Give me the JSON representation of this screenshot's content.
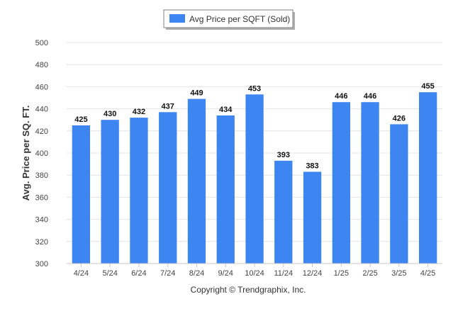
{
  "chart_data": {
    "type": "bar",
    "categories": [
      "4/24",
      "5/24",
      "6/24",
      "7/24",
      "8/24",
      "9/24",
      "10/24",
      "11/24",
      "12/24",
      "1/25",
      "2/25",
      "3/25",
      "4/25"
    ],
    "series": [
      {
        "name": "Avg Price per SQFT (Sold)",
        "values": [
          425,
          430,
          432,
          437,
          449,
          434,
          453,
          393,
          383,
          446,
          446,
          426,
          455
        ],
        "color": "#3d85f0"
      }
    ],
    "data_labels": [
      "425",
      "430",
      "432",
      "437",
      "449",
      "434",
      "453",
      "393",
      "383",
      "446",
      "446",
      "426",
      "455"
    ],
    "ylabel": "Avg. Price per SQ. FT.",
    "xlabel": "",
    "ylim": [
      300,
      500
    ],
    "yticks": [
      300,
      320,
      340,
      360,
      380,
      400,
      420,
      440,
      460,
      480,
      500
    ],
    "grid": true,
    "legend_position": "top-center",
    "footer": "Copyright © Trendgraphix, Inc."
  }
}
